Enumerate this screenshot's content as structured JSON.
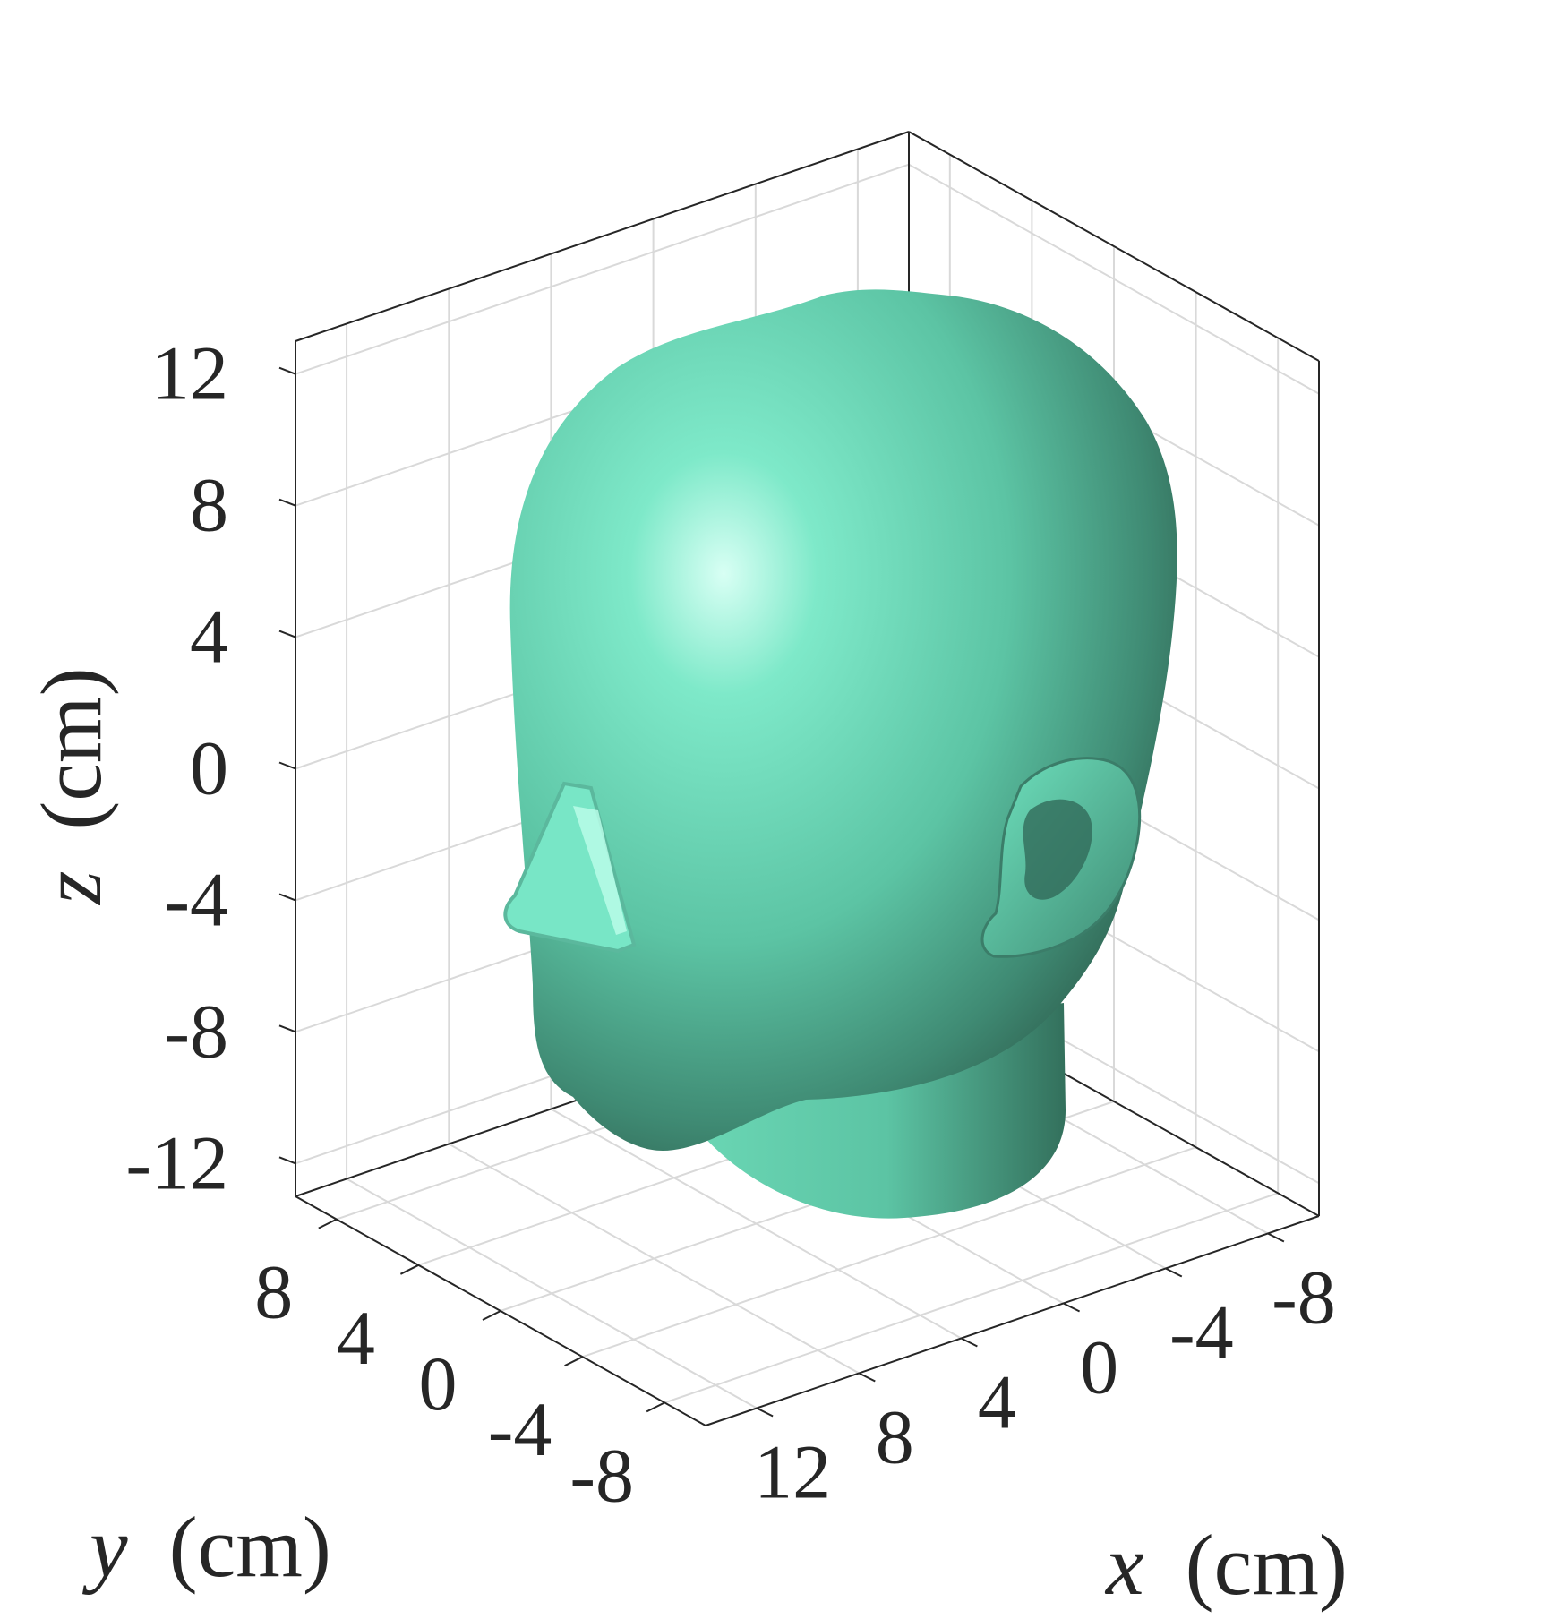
{
  "chart_data": {
    "type": "3d-surface",
    "title": "",
    "xlabel": {
      "var": "x",
      "unit": "(cm)"
    },
    "ylabel": {
      "var": "y",
      "unit": "(cm)"
    },
    "zlabel": {
      "var": "z",
      "unit": "(cm)"
    },
    "xlim": [
      -10,
      14
    ],
    "ylim": [
      -10,
      10
    ],
    "zlim": [
      -13,
      13
    ],
    "xticks": [
      12,
      8,
      4,
      0,
      -4,
      -8
    ],
    "yticks": [
      -8,
      -4,
      0,
      4,
      8
    ],
    "zticks": [
      12,
      8,
      4,
      0,
      -4,
      -8,
      -12
    ],
    "grid": true,
    "surface": {
      "object": "head",
      "color": "#6fe3bf",
      "shadow_color": "#2c5a4a",
      "highlight_color": "#d8fff4",
      "ear_side": "left",
      "features": [
        "ear",
        "nose"
      ]
    },
    "colors": {
      "axis": "#262626",
      "grid": "#d9d9d9",
      "text": "#262626"
    }
  }
}
